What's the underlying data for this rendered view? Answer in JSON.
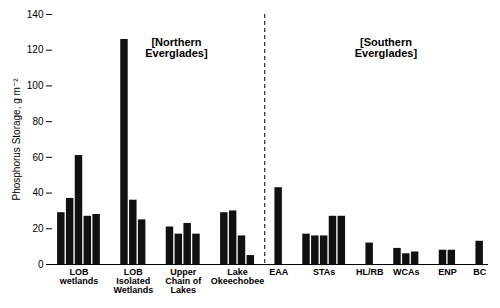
{
  "chart_data": {
    "type": "bar",
    "ylabel": "Phosphorus Storage, g m⁻²",
    "categories": [
      "LOB\nwetlands",
      "LOB\nIsolated\nWetlands",
      "Upper\nChain of\nLakes",
      "Lake\nOkeechobee",
      "EAA",
      "STAs",
      "HL/RB",
      "WCAs",
      "ENP",
      "BC"
    ],
    "values": [
      [
        29,
        37,
        61,
        27,
        28
      ],
      [
        126,
        36,
        25
      ],
      [
        21,
        17,
        23,
        17
      ],
      [
        29,
        30,
        16,
        5
      ],
      [
        43
      ],
      [
        17,
        16,
        16,
        27,
        27
      ],
      [
        12
      ],
      [
        9,
        6,
        7
      ],
      [
        8,
        8
      ],
      [
        13
      ]
    ],
    "color": "#111111",
    "ylim": [
      0,
      140
    ],
    "yticks": [
      0,
      20,
      40,
      60,
      80,
      100,
      120,
      140
    ],
    "grid": false,
    "annotations": [
      {
        "text": "[Northern\nEverglades]",
        "y": 127,
        "categories": [
          "LOB\nwetlands",
          "LOB\nIsolated\nWetlands",
          "Upper\nChain of\nLakes",
          "Lake\nOkeechobee"
        ]
      },
      {
        "text": "[Southern\nEverglades]",
        "y": 127,
        "categories": [
          "EAA",
          "STAs",
          "HL/RB",
          "WCAs",
          "ENP",
          "BC"
        ]
      }
    ]
  }
}
